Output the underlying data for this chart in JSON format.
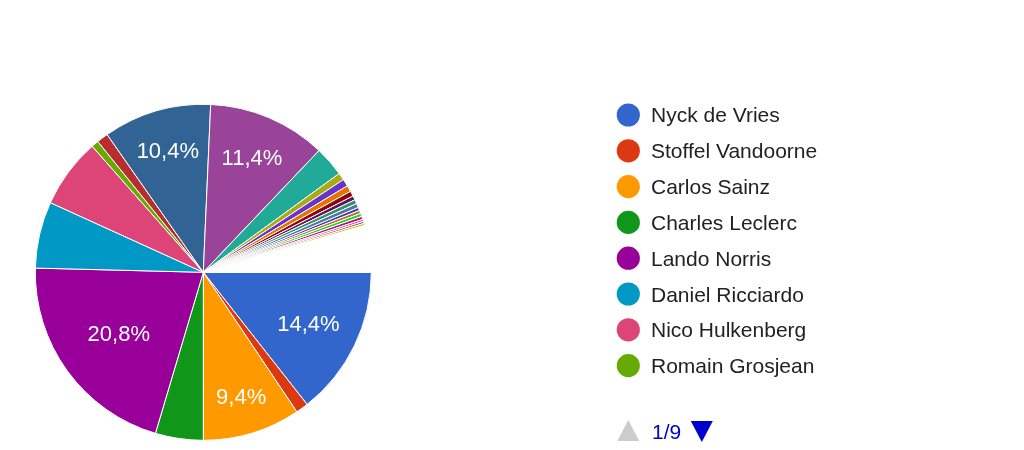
{
  "chart_data": {
    "type": "pie",
    "categories": [
      "Nyck de Vries",
      "Stoffel Vandoorne",
      "Carlos Sainz",
      "Charles Leclerc",
      "Lando Norris",
      "Daniel Ricciardo",
      "Nico Hulkenberg",
      "Romain Grosjean",
      null,
      null,
      null,
      null,
      null,
      null,
      null,
      null,
      null,
      null,
      null,
      null,
      null,
      null,
      null,
      null,
      null,
      null,
      null
    ],
    "values": [
      14.4,
      1.2,
      9.4,
      4.6,
      20.8,
      6.4,
      6.7,
      0.7,
      1.1,
      10.4,
      11.4,
      2.9,
      0.7,
      0.7,
      0.6,
      0.5,
      0.4,
      0.4,
      0.4,
      0.3,
      0.3,
      0.3,
      0.3,
      0.2,
      0.2,
      0.2,
      4.5
    ],
    "colors": [
      "#3366cc",
      "#dc3912",
      "#ff9900",
      "#109618",
      "#990099",
      "#0099c6",
      "#dd4477",
      "#66aa00",
      "#b82e2e",
      "#316395",
      "#994499",
      "#22aa99",
      "#aaaa11",
      "#6633cc",
      "#e67300",
      "#8b0707",
      "#651067",
      "#329262",
      "#5574a6",
      "#3b3eac",
      "#b77322",
      "#16d620",
      "#b91383",
      "#f4359e",
      "#9c5935",
      "#a9c413",
      "#ffffff"
    ],
    "value_labels": [
      "14,4%",
      null,
      "9,4%",
      null,
      "20,8%",
      null,
      null,
      null,
      null,
      "10,4%",
      "11,4%",
      null,
      null,
      null,
      null,
      null,
      null,
      null,
      null,
      null,
      null,
      null,
      null,
      null,
      null,
      null,
      null
    ],
    "legend": "right",
    "annotations": [
      "1/9"
    ]
  }
}
